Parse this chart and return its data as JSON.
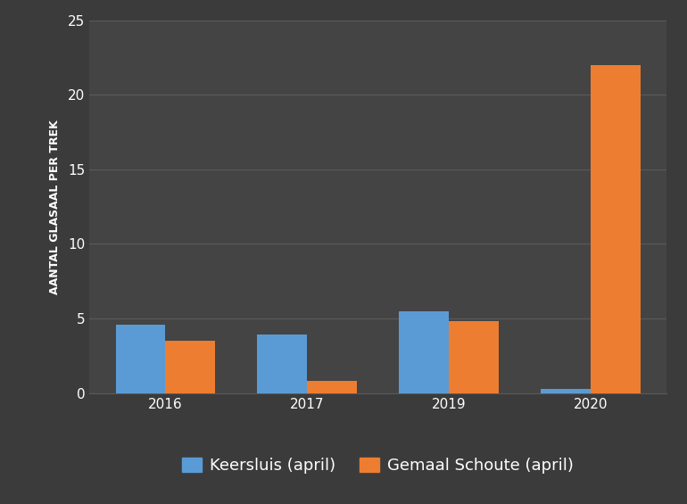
{
  "years": [
    "2016",
    "2017",
    "2019",
    "2020"
  ],
  "keersluis": [
    4.6,
    3.9,
    5.5,
    0.3
  ],
  "gemaal": [
    3.5,
    0.8,
    4.8,
    22.0
  ],
  "keersluis_color": "#5B9BD5",
  "gemaal_color": "#ED7D31",
  "ylabel": "AANTAL GLASAAL PER TREK",
  "ylim": [
    0,
    25
  ],
  "yticks": [
    0,
    5,
    10,
    15,
    20,
    25
  ],
  "background_color": "#3b3b3b",
  "plot_bg_color": "#444444",
  "grid_color": "#5a5a5a",
  "text_color": "#ffffff",
  "legend_keersluis": "Keersluis (april)",
  "legend_gemaal": "Gemaal Schoute (april)",
  "bar_width": 0.35,
  "legend_bg_color": "#3b3b3b"
}
